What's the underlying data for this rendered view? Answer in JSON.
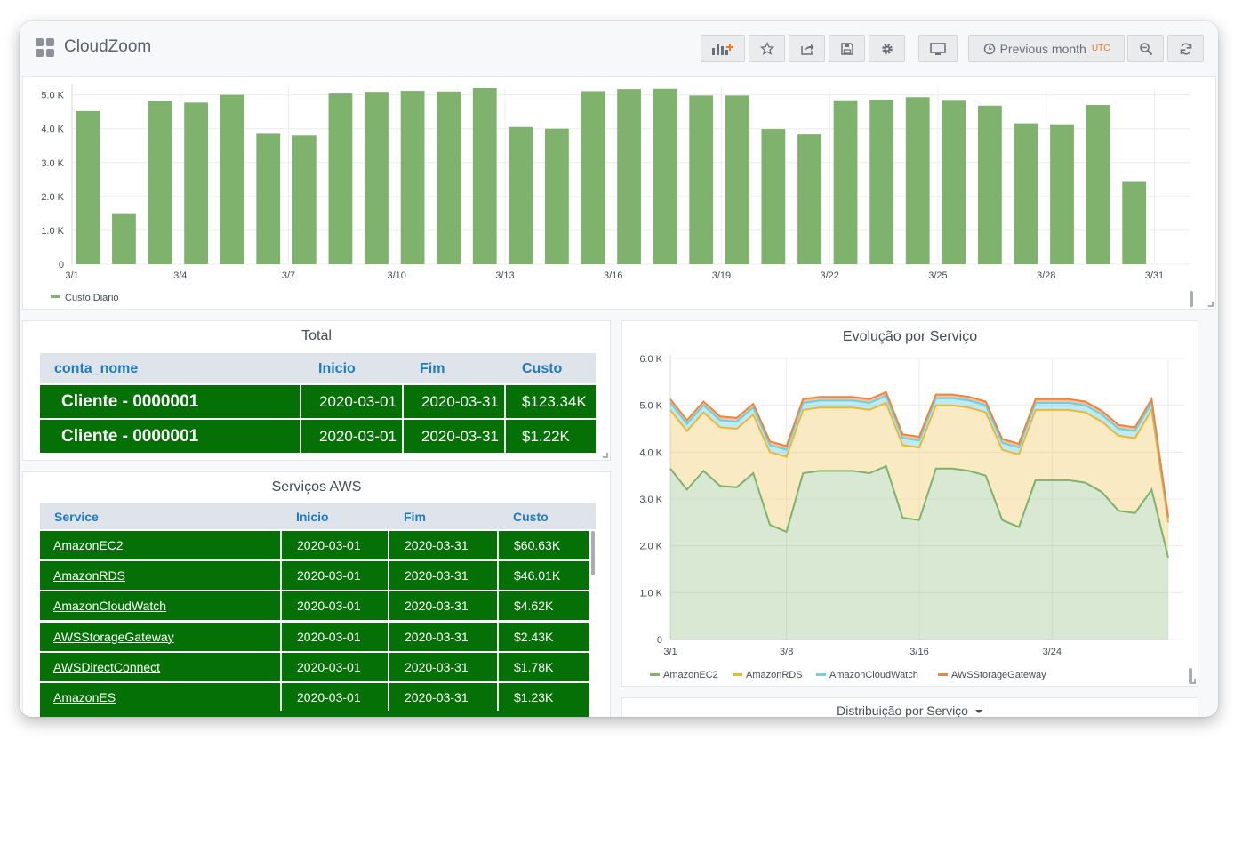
{
  "app": {
    "title": "CloudZoom"
  },
  "toolbar": {
    "range_label": "Previous month",
    "timezone": "UTC",
    "icons": [
      "add-panel-icon",
      "star-icon",
      "share-icon",
      "save-icon",
      "gear-icon",
      "monitor-icon",
      "clock-icon",
      "zoom-out-icon",
      "refresh-icon"
    ]
  },
  "colors": {
    "bar": "#7eb26d",
    "table_row": "#057005",
    "header_text": "#1f7bc1",
    "ec2": "#7eb26d",
    "rds": "#eab839",
    "cloudwatch": "#6ed0e0",
    "storage": "#ef843c"
  },
  "daily_chart": {
    "chart_data": {
      "type": "bar",
      "categories": [
        "3/1",
        "3/2",
        "3/3",
        "3/4",
        "3/5",
        "3/6",
        "3/7",
        "3/8",
        "3/9",
        "3/10",
        "3/11",
        "3/12",
        "3/13",
        "3/14",
        "3/15",
        "3/16",
        "3/17",
        "3/18",
        "3/19",
        "3/20",
        "3/21",
        "3/22",
        "3/23",
        "3/24",
        "3/25",
        "3/26",
        "3/27",
        "3/28",
        "3/29",
        "3/30",
        "3/31"
      ],
      "x_tick_labels": [
        "3/1",
        "3/4",
        "3/7",
        "3/10",
        "3/13",
        "3/16",
        "3/19",
        "3/22",
        "3/25",
        "3/28",
        "3/31"
      ],
      "values": [
        4520,
        1480,
        4830,
        4770,
        5000,
        3850,
        3800,
        5040,
        5090,
        5120,
        5100,
        5200,
        4050,
        4000,
        5110,
        5170,
        5180,
        4980,
        4980,
        3990,
        3830,
        4840,
        4860,
        4930,
        4850,
        4680,
        4160,
        4130,
        4700,
        2430,
        0
      ],
      "y_ticks": [
        "0",
        "1.0 K",
        "2.0 K",
        "3.0 K",
        "4.0 K",
        "5.0 K"
      ],
      "ylim": [
        0,
        5200
      ],
      "grid": true,
      "legend": [
        "Custo Diario"
      ],
      "series": [
        {
          "name": "Custo Diario",
          "color": "#7eb26d"
        }
      ]
    }
  },
  "total_panel": {
    "title": "Total",
    "headers": [
      "conta_nome",
      "Inicio",
      "Fim",
      "Custo"
    ],
    "rows": [
      [
        "Cliente - 0000001",
        "2020-03-01",
        "2020-03-31",
        "$123.34K"
      ],
      [
        "Cliente - 0000001",
        "2020-03-01",
        "2020-03-31",
        "$1.22K"
      ]
    ]
  },
  "services_panel": {
    "title": "Serviços AWS",
    "headers": [
      "Service",
      "Inicio",
      "Fim",
      "Custo"
    ],
    "rows": [
      [
        "AmazonEC2",
        "2020-03-01",
        "2020-03-31",
        "$60.63K"
      ],
      [
        "AmazonRDS",
        "2020-03-01",
        "2020-03-31",
        "$46.01K"
      ],
      [
        "AmazonCloudWatch",
        "2020-03-01",
        "2020-03-31",
        "$4.62K"
      ],
      [
        "AWSStorageGateway",
        "2020-03-01",
        "2020-03-31",
        "$2.43K"
      ],
      [
        "AWSDirectConnect",
        "2020-03-01",
        "2020-03-31",
        "$1.78K"
      ],
      [
        "AmazonES",
        "2020-03-01",
        "2020-03-31",
        "$1.23K"
      ]
    ]
  },
  "evolution_panel": {
    "title": "Evolução por Serviço",
    "chart_data": {
      "type": "area",
      "stacked": true,
      "x": [
        "3/1",
        "3/2",
        "3/3",
        "3/4",
        "3/5",
        "3/6",
        "3/7",
        "3/8",
        "3/9",
        "3/10",
        "3/11",
        "3/12",
        "3/13",
        "3/14",
        "3/15",
        "3/16",
        "3/17",
        "3/18",
        "3/19",
        "3/20",
        "3/21",
        "3/22",
        "3/23",
        "3/24",
        "3/25",
        "3/26",
        "3/27",
        "3/28",
        "3/29",
        "3/30",
        "3/31"
      ],
      "x_tick_labels": [
        "3/1",
        "3/8",
        "3/16",
        "3/24"
      ],
      "y_ticks": [
        "0",
        "1.0 K",
        "2.0 K",
        "3.0 K",
        "4.0 K",
        "5.0 K",
        "6.0 K"
      ],
      "ylim": [
        0,
        6000
      ],
      "grid": true,
      "legend_position": "bottom",
      "series": [
        {
          "name": "AmazonEC2",
          "color": "#7eb26d",
          "values": [
            3650,
            3200,
            3600,
            3280,
            3250,
            3550,
            2450,
            2300,
            3550,
            3600,
            3600,
            3600,
            3550,
            3700,
            2600,
            2550,
            3650,
            3650,
            3600,
            3500,
            2550,
            2400,
            3400,
            3400,
            3400,
            3350,
            3150,
            2750,
            2700,
            3200,
            1750
          ]
        },
        {
          "name": "AmazonRDS",
          "color": "#eab839",
          "values": [
            1250,
            1250,
            1250,
            1250,
            1250,
            1250,
            1550,
            1600,
            1350,
            1350,
            1350,
            1350,
            1350,
            1350,
            1550,
            1550,
            1350,
            1350,
            1350,
            1350,
            1500,
            1550,
            1500,
            1500,
            1500,
            1500,
            1500,
            1600,
            1600,
            1700,
            750
          ]
        },
        {
          "name": "AmazonCloudWatch",
          "color": "#6ed0e0",
          "values": [
            150,
            150,
            150,
            150,
            150,
            150,
            150,
            150,
            150,
            150,
            150,
            150,
            150,
            150,
            150,
            150,
            150,
            150,
            150,
            150,
            150,
            150,
            150,
            150,
            150,
            150,
            150,
            150,
            150,
            150,
            80
          ]
        },
        {
          "name": "AWSStorageGateway",
          "color": "#ef843c",
          "values": [
            80,
            80,
            80,
            80,
            80,
            80,
            80,
            80,
            80,
            80,
            80,
            80,
            80,
            80,
            80,
            80,
            80,
            80,
            80,
            80,
            80,
            80,
            80,
            80,
            80,
            80,
            80,
            80,
            80,
            80,
            40
          ]
        }
      ]
    }
  },
  "distribution_panel": {
    "title": "Distribuição por Serviço"
  }
}
